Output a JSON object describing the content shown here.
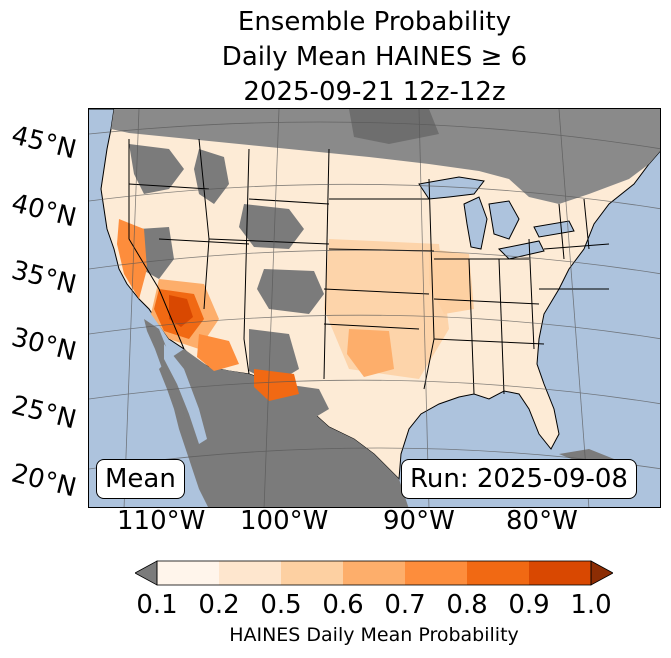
{
  "title": {
    "line1": "Ensemble Probability",
    "line2": "Daily Mean HAINES ≥ 6",
    "line3": "2025-09-21 12z-12z"
  },
  "map": {
    "ocean_color": "#adc3dd",
    "land_nodata_color": "#7b7b7b",
    "lat_labels": [
      "45°N",
      "40°N",
      "35°N",
      "30°N",
      "25°N",
      "20°N"
    ],
    "lon_labels": [
      "110°W",
      "100°W",
      "90°W",
      "80°W"
    ],
    "mean_label": "Mean",
    "run_label": "Run: 2025-09-08"
  },
  "colorbar": {
    "ticks": [
      "0.1",
      "0.2",
      "0.5",
      "0.6",
      "0.7",
      "0.8",
      "0.9",
      "1.0"
    ],
    "colors": [
      "#fff5eb",
      "#fee6ce",
      "#fdd0a2",
      "#fdae6b",
      "#fd8d3c",
      "#f16913",
      "#d94801",
      "#8c2d04"
    ],
    "under_color": "#7b7b7b",
    "label": "HAINES Daily Mean Probability"
  }
}
